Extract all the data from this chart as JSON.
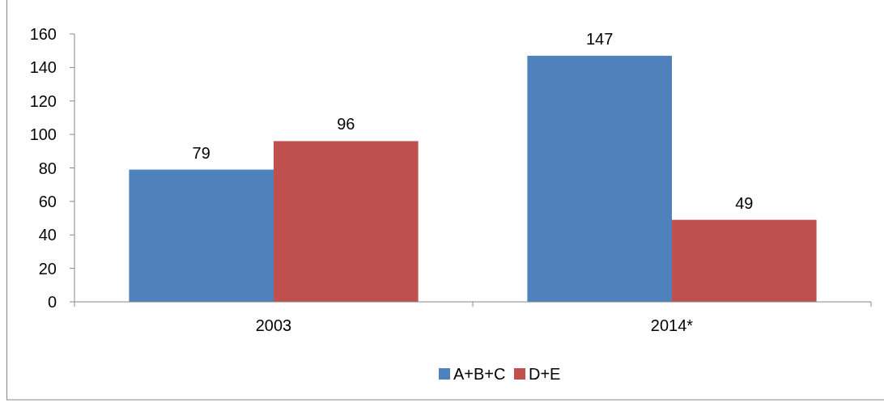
{
  "chart_data": {
    "type": "bar",
    "categories": [
      "2003",
      "2014*"
    ],
    "series": [
      {
        "name": "A+B+C",
        "color": "#4f81bd",
        "values": [
          79,
          147
        ]
      },
      {
        "name": "D+E",
        "color": "#c0504d",
        "values": [
          96,
          49
        ]
      }
    ],
    "ylim": [
      0,
      160
    ],
    "yticks": [
      0,
      20,
      40,
      60,
      80,
      100,
      120,
      140,
      160
    ],
    "data_labels": true,
    "legend": "bottom",
    "grid": false
  }
}
